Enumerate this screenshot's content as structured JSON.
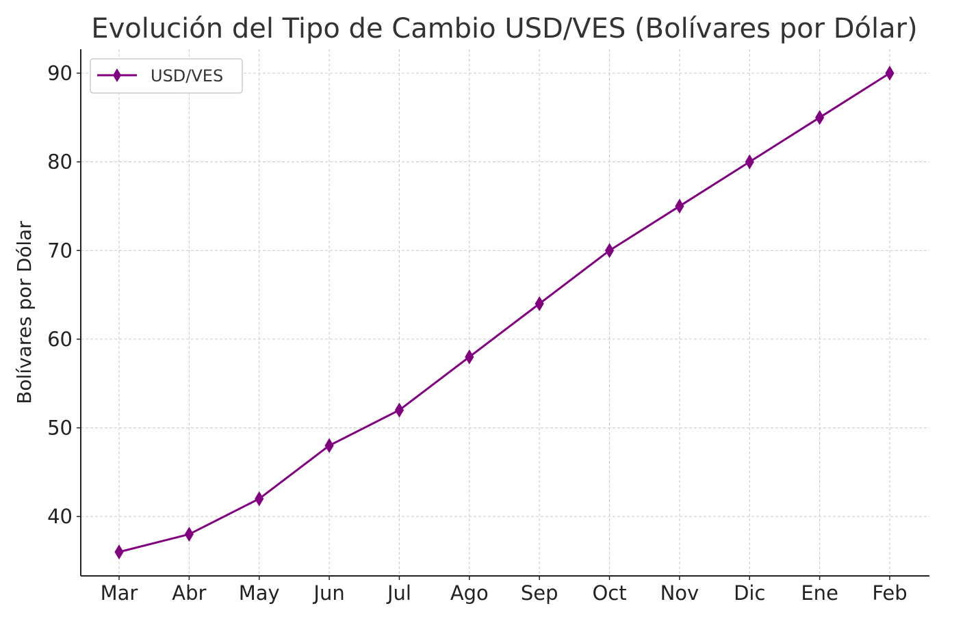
{
  "chart_data": {
    "type": "line",
    "title": "Evolución del Tipo de Cambio USD/VES (Bolívares por Dólar)",
    "xlabel": "",
    "ylabel": "Bolívares por Dólar",
    "categories": [
      "Mar",
      "Abr",
      "May",
      "Jun",
      "Jul",
      "Ago",
      "Sep",
      "Oct",
      "Nov",
      "Dic",
      "Ene",
      "Feb"
    ],
    "series": [
      {
        "name": "USD/VES",
        "values": [
          36,
          38,
          42,
          48,
          52,
          58,
          64,
          70,
          75,
          80,
          85,
          90
        ],
        "color": "#800080",
        "marker": "diamond"
      }
    ],
    "ylim": [
      33.3,
      92.7
    ],
    "yticks": [
      40,
      50,
      60,
      70,
      80,
      90
    ],
    "grid": true,
    "legend_position": "top-left"
  }
}
